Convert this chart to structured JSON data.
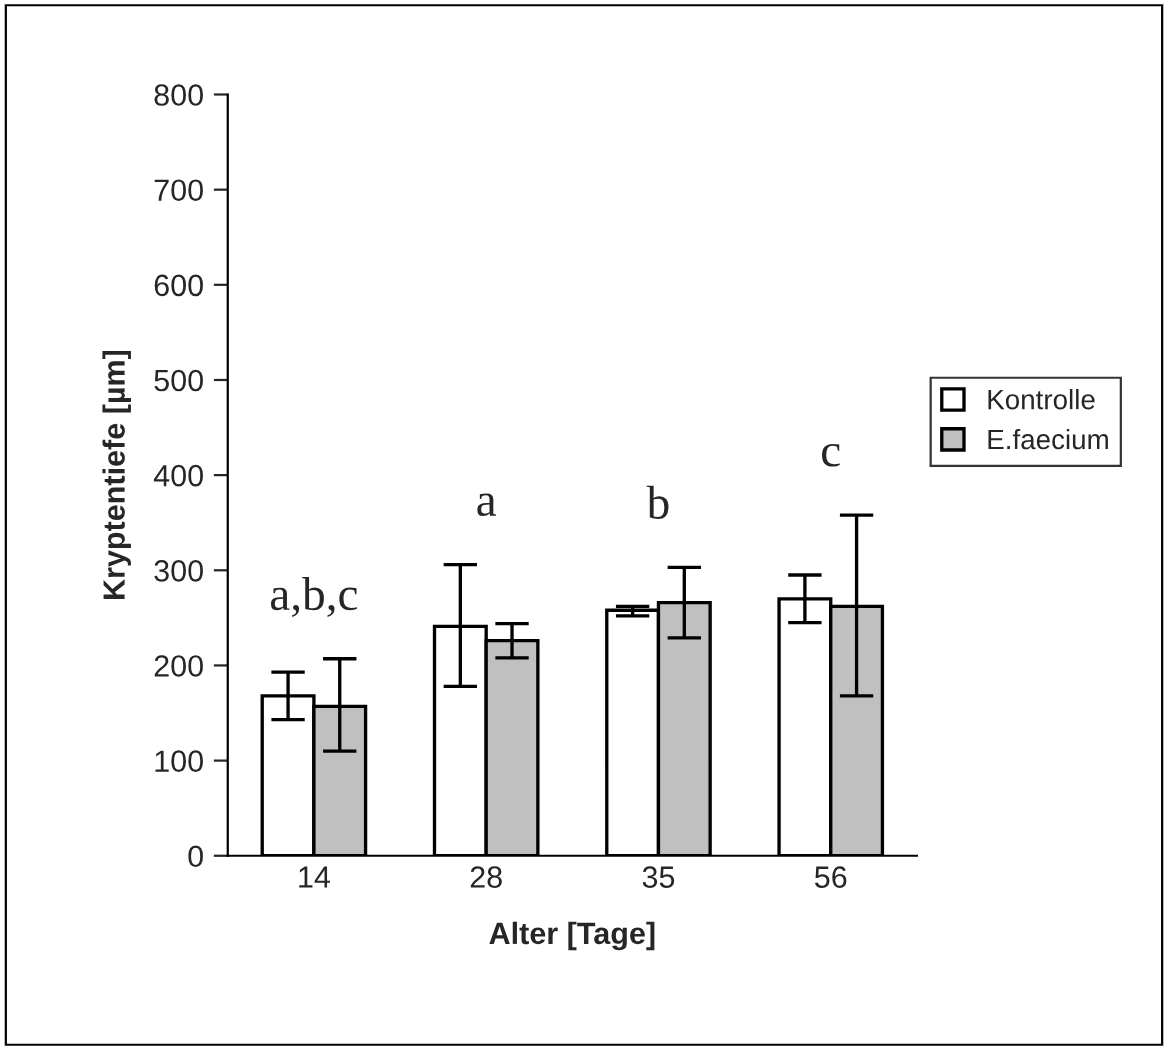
{
  "chart_data": {
    "type": "bar",
    "xlabel": "Alter [Tage]",
    "ylabel": "Kryptentiefe [µm]",
    "categories": [
      "14",
      "28",
      "35",
      "56"
    ],
    "series": [
      {
        "name": "Kontrolle",
        "color": "#ffffff",
        "values": [
          168,
          241,
          258,
          270
        ],
        "errors": [
          25,
          [
            178,
            306
          ],
          [
            252,
            262
          ],
          25
        ]
      },
      {
        "name": "E.faecium",
        "color": "#c0c0c0",
        "values": [
          157,
          226,
          266,
          262
        ],
        "errors": [
          [
            110,
            207
          ],
          18,
          [
            229,
            303
          ],
          [
            168,
            358
          ]
        ]
      }
    ],
    "ylim": [
      0,
      800
    ],
    "yticks": [
      0,
      100,
      200,
      300,
      400,
      500,
      600,
      700,
      800
    ],
    "annotations": [
      "a,b,c",
      "a",
      "b",
      "c"
    ],
    "grid": false,
    "legend": "right"
  }
}
